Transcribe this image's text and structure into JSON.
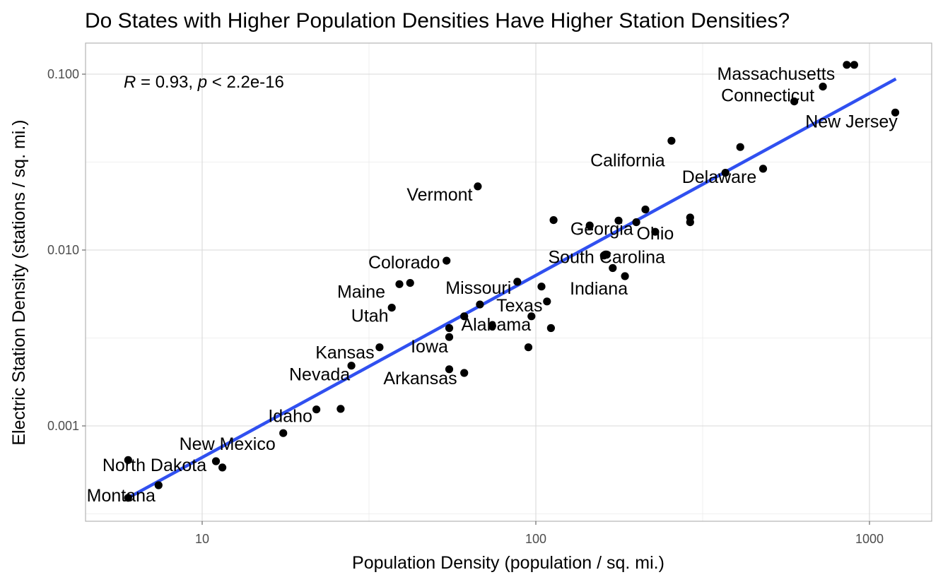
{
  "chart_data": {
    "type": "scatter",
    "title": "Do States with Higher Population Densities Have Higher Station Densities?",
    "xlabel": "Population Density (population / sq. mi.)",
    "ylabel": "Electric Station Density (stations / sq. mi.)",
    "x_scale": "log10",
    "y_scale": "log10",
    "xlim": [
      5,
      1500
    ],
    "ylim": [
      0.0003,
      0.15
    ],
    "x_ticks": [
      10,
      100,
      1000
    ],
    "x_tick_labels": [
      "10",
      "100",
      "1000"
    ],
    "y_ticks": [
      0.001,
      0.01,
      0.1
    ],
    "y_tick_labels": [
      "0.001",
      "0.010",
      "0.100"
    ],
    "grid": true,
    "annotation": {
      "r_symbol": "R",
      "r_text": " = 0.93, ",
      "p_symbol": "p",
      "p_text": " < 2.2e-16"
    },
    "fit_line": {
      "x": [
        6.0,
        1200.0
      ],
      "y": [
        0.00039,
        0.094
      ],
      "color": "#3050f0"
    },
    "points": [
      {
        "x": 6.0,
        "y": 0.00064
      },
      {
        "x": 6.0,
        "y": 0.00039
      },
      {
        "x": 7.4,
        "y": 0.00046
      },
      {
        "x": 11.0,
        "y": 0.00063
      },
      {
        "x": 11.5,
        "y": 0.00058
      },
      {
        "x": 17.5,
        "y": 0.00091
      },
      {
        "x": 22.0,
        "y": 0.00124
      },
      {
        "x": 26.0,
        "y": 0.00125
      },
      {
        "x": 28.0,
        "y": 0.0022
      },
      {
        "x": 34.0,
        "y": 0.0028
      },
      {
        "x": 37.0,
        "y": 0.0047
      },
      {
        "x": 39.0,
        "y": 0.0064
      },
      {
        "x": 42.0,
        "y": 0.0065
      },
      {
        "x": 54.0,
        "y": 0.0087
      },
      {
        "x": 55.0,
        "y": 0.0036
      },
      {
        "x": 55.0,
        "y": 0.0032
      },
      {
        "x": 55.0,
        "y": 0.0021
      },
      {
        "x": 61.0,
        "y": 0.0042
      },
      {
        "x": 61.0,
        "y": 0.002
      },
      {
        "x": 67.0,
        "y": 0.023
      },
      {
        "x": 68.0,
        "y": 0.0049
      },
      {
        "x": 74.0,
        "y": 0.0037
      },
      {
        "x": 88.0,
        "y": 0.0066
      },
      {
        "x": 95.0,
        "y": 0.0028
      },
      {
        "x": 97.0,
        "y": 0.0042
      },
      {
        "x": 104.0,
        "y": 0.0062
      },
      {
        "x": 108.0,
        "y": 0.0051
      },
      {
        "x": 111.0,
        "y": 0.0036
      },
      {
        "x": 113.0,
        "y": 0.0148
      },
      {
        "x": 145.0,
        "y": 0.0138
      },
      {
        "x": 160.0,
        "y": 0.0093
      },
      {
        "x": 163.0,
        "y": 0.0094
      },
      {
        "x": 170.0,
        "y": 0.0079
      },
      {
        "x": 177.0,
        "y": 0.0147
      },
      {
        "x": 185.0,
        "y": 0.0071
      },
      {
        "x": 200.0,
        "y": 0.0144
      },
      {
        "x": 213.0,
        "y": 0.017
      },
      {
        "x": 228.0,
        "y": 0.0127
      },
      {
        "x": 255.0,
        "y": 0.0418
      },
      {
        "x": 290.0,
        "y": 0.0153
      },
      {
        "x": 290.0,
        "y": 0.0144
      },
      {
        "x": 370.0,
        "y": 0.0275
      },
      {
        "x": 410.0,
        "y": 0.0385
      },
      {
        "x": 480.0,
        "y": 0.029
      },
      {
        "x": 595.0,
        "y": 0.07
      },
      {
        "x": 725.0,
        "y": 0.085
      },
      {
        "x": 855.0,
        "y": 0.113
      },
      {
        "x": 900.0,
        "y": 0.113
      },
      {
        "x": 1195.0,
        "y": 0.0605
      }
    ],
    "labels": [
      {
        "text": "Massachusetts",
        "x": 855.0,
        "y": 0.113
      },
      {
        "text": "Connecticut",
        "x": 725.0,
        "y": 0.085
      },
      {
        "text": "New Jersey",
        "x": 1195.0,
        "y": 0.0605
      },
      {
        "text": "California",
        "x": 255.0,
        "y": 0.0418
      },
      {
        "text": "Delaware",
        "x": 480.0,
        "y": 0.029
      },
      {
        "text": "Vermont",
        "x": 67.0,
        "y": 0.023
      },
      {
        "text": "Georgia",
        "x": 160.0,
        "y": 0.0148
      },
      {
        "text": "Ohio",
        "x": 228.0,
        "y": 0.0127
      },
      {
        "text": "Colorado",
        "x": 54.0,
        "y": 0.0087
      },
      {
        "text": "South Carolina",
        "x": 163.0,
        "y": 0.0094
      },
      {
        "text": "Indiana",
        "x": 185.0,
        "y": 0.0071
      },
      {
        "text": "Maine",
        "x": 39.0,
        "y": 0.0064
      },
      {
        "text": "Missouri",
        "x": 88.0,
        "y": 0.0066
      },
      {
        "text": "Utah",
        "x": 37.0,
        "y": 0.0047
      },
      {
        "text": "Texas",
        "x": 108.0,
        "y": 0.0051
      },
      {
        "text": "Alabama",
        "x": 97.0,
        "y": 0.0042
      },
      {
        "text": "Iowa",
        "x": 55.0,
        "y": 0.0032
      },
      {
        "text": "Kansas",
        "x": 34.0,
        "y": 0.0028
      },
      {
        "text": "Nevada",
        "x": 28.0,
        "y": 0.0022
      },
      {
        "text": "Arkansas",
        "x": 55.0,
        "y": 0.0021
      },
      {
        "text": "Idaho",
        "x": 22.0,
        "y": 0.00124
      },
      {
        "text": "New Mexico",
        "x": 17.5,
        "y": 0.00091
      },
      {
        "text": "North Dakota",
        "x": 11.0,
        "y": 0.00063
      },
      {
        "text": "Montana",
        "x": 7.4,
        "y": 0.00046
      }
    ]
  }
}
